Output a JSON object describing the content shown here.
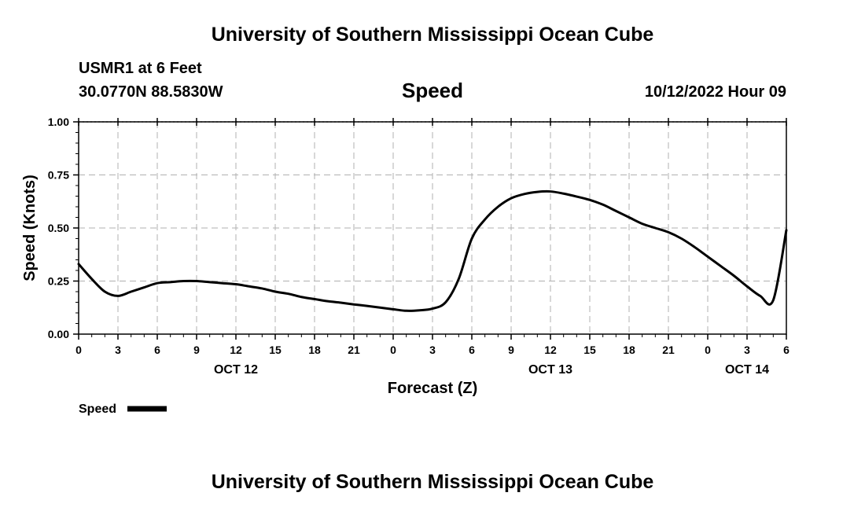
{
  "header": {
    "title": "University of Southern Mississippi Ocean Cube",
    "station": "USMR1 at 6 Feet",
    "coordinates": "30.0770N  88.5830W",
    "parameter": "Speed",
    "datetime": "10/12/2022 Hour 09"
  },
  "footer": {
    "title": "University of Southern Mississippi Ocean Cube"
  },
  "chart_data": {
    "type": "line",
    "title": "Speed",
    "xlabel": "Forecast (Z)",
    "ylabel": "Speed (Knots)",
    "x_unit": "hours since OCT 12 00Z",
    "xlim": [
      0,
      54
    ],
    "ylim": [
      0,
      1
    ],
    "grid": true,
    "y_ticks": [
      0.0,
      0.25,
      0.5,
      0.75,
      1.0
    ],
    "y_tick_labels": [
      "0.00",
      "0.25",
      "0.50",
      "0.75",
      "1.00"
    ],
    "x_ticks": [
      0,
      3,
      6,
      9,
      12,
      15,
      18,
      21,
      24,
      27,
      30,
      33,
      36,
      39,
      42,
      45,
      48,
      51,
      54
    ],
    "x_tick_labels": [
      "0",
      "3",
      "6",
      "9",
      "12",
      "15",
      "18",
      "21",
      "0",
      "3",
      "6",
      "9",
      "12",
      "15",
      "18",
      "21",
      "0",
      "3",
      "6"
    ],
    "date_labels": [
      {
        "x": 12,
        "label": "OCT 12"
      },
      {
        "x": 36,
        "label": "OCT 13"
      },
      {
        "x": 51,
        "label": "OCT 14"
      }
    ],
    "legend": {
      "label": "Speed",
      "placement": "bottom-left"
    },
    "series": [
      {
        "name": "Speed",
        "x": [
          0,
          1,
          2,
          3,
          4,
          5,
          6,
          7,
          8,
          9,
          10,
          11,
          12,
          13,
          14,
          15,
          16,
          17,
          18,
          19,
          20,
          21,
          22,
          23,
          24,
          25,
          26,
          27,
          28,
          29,
          30,
          31,
          32,
          33,
          34,
          35,
          36,
          37,
          38,
          39,
          40,
          41,
          42,
          43,
          44,
          45,
          46,
          47,
          48,
          49,
          50,
          51,
          52,
          53,
          54
        ],
        "values": [
          0.33,
          0.26,
          0.2,
          0.18,
          0.2,
          0.22,
          0.24,
          0.245,
          0.25,
          0.25,
          0.245,
          0.24,
          0.235,
          0.225,
          0.215,
          0.2,
          0.19,
          0.175,
          0.165,
          0.155,
          0.148,
          0.14,
          0.133,
          0.125,
          0.117,
          0.11,
          0.112,
          0.12,
          0.15,
          0.26,
          0.45,
          0.54,
          0.6,
          0.64,
          0.66,
          0.67,
          0.672,
          0.662,
          0.648,
          0.632,
          0.61,
          0.58,
          0.55,
          0.52,
          0.5,
          0.48,
          0.45,
          0.41,
          0.365,
          0.32,
          0.275,
          0.225,
          0.18,
          0.16,
          0.49
        ]
      }
    ]
  }
}
